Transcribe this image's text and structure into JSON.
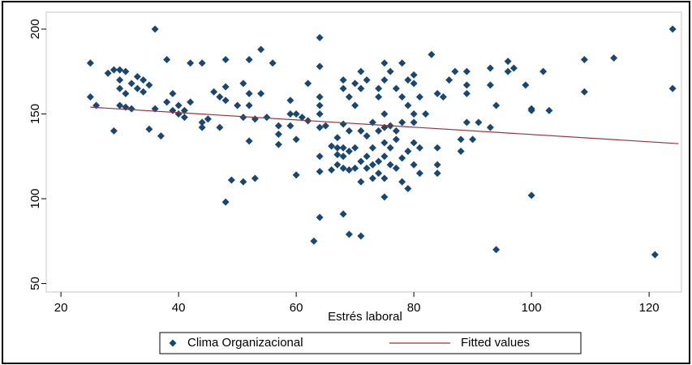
{
  "chart_data": {
    "type": "scatter",
    "x_label": "Estrés laboral",
    "xlim": [
      17.5,
      125.5
    ],
    "xticks": [
      20,
      40,
      60,
      80,
      100,
      120
    ],
    "ylim": [
      45,
      210
    ],
    "yticks": [
      50,
      100,
      150,
      200
    ],
    "legend": "bottom",
    "series": [
      {
        "name": "Clima Organizacional",
        "type": "scatter",
        "color": "#1a476f",
        "x": [
          25,
          25,
          26,
          28,
          29,
          29,
          30,
          30,
          30,
          30,
          31,
          31,
          31,
          32,
          32,
          33,
          33,
          34,
          34,
          35,
          35,
          36,
          36,
          37,
          38,
          38,
          39,
          39,
          40,
          40,
          41,
          41,
          42,
          42,
          44,
          44,
          44,
          45,
          46,
          47,
          47,
          48,
          48,
          48,
          48,
          49,
          50,
          51,
          51,
          51,
          52,
          52,
          52,
          52,
          53,
          53,
          54,
          54,
          55,
          56,
          57,
          57,
          57,
          59,
          59,
          59,
          60,
          60,
          60,
          61,
          62,
          62,
          63,
          64,
          64,
          64,
          64,
          64,
          64,
          64,
          64,
          64,
          65,
          66,
          66,
          67,
          67,
          67,
          67,
          68,
          68,
          68,
          68,
          68,
          68,
          68,
          69,
          69,
          69,
          69,
          69,
          70,
          70,
          70,
          70,
          71,
          71,
          71,
          71,
          71,
          71,
          72,
          72,
          72,
          72,
          73,
          73,
          73,
          73,
          74,
          74,
          74,
          74,
          74,
          75,
          75,
          75,
          75,
          75,
          75,
          75,
          75,
          76,
          76,
          76,
          76,
          77,
          77,
          77,
          77,
          78,
          78,
          78,
          78,
          78,
          79,
          79,
          79,
          79,
          80,
          80,
          80,
          80,
          80,
          80,
          81,
          81,
          81,
          82,
          83,
          84,
          84,
          84,
          84,
          85,
          86,
          87,
          88,
          88,
          89,
          89,
          89,
          89,
          90,
          91,
          93,
          93,
          93,
          94,
          94,
          96,
          96,
          97,
          99,
          100,
          100,
          100,
          102,
          103,
          109,
          109,
          114,
          121,
          124,
          124
        ],
        "values": [
          180,
          160,
          155,
          174,
          176,
          140,
          176,
          170,
          165,
          155,
          175,
          162,
          154,
          168,
          153,
          172,
          165,
          170,
          163,
          167,
          141,
          200,
          153,
          137,
          182,
          157,
          152,
          162,
          150,
          155,
          148,
          152,
          180,
          157,
          180,
          145,
          142,
          147,
          163,
          160,
          142,
          158,
          182,
          98,
          166,
          111,
          155,
          168,
          110,
          148,
          155,
          134,
          162,
          182,
          112,
          147,
          188,
          162,
          148,
          180,
          143,
          138,
          132,
          158,
          150,
          143,
          150,
          135,
          114,
          148,
          168,
          146,
          75,
          195,
          178,
          160,
          155,
          150,
          142,
          125,
          116,
          89,
          143,
          131,
          117,
          130,
          126,
          136,
          120,
          170,
          165,
          144,
          130,
          125,
          118,
          91,
          160,
          140,
          128,
          117,
          79,
          168,
          155,
          130,
          118,
          175,
          165,
          140,
          122,
          110,
          78,
          170,
          137,
          125,
          118,
          145,
          130,
          112,
          120,
          165,
          160,
          140,
          122,
          115,
          180,
          170,
          150,
          142,
          133,
          125,
          112,
          101,
          175,
          143,
          130,
          120,
          165,
          140,
          118,
          135,
          180,
          160,
          145,
          124,
          110,
          155,
          128,
          106,
          170,
          173,
          168,
          150,
          133,
          120,
          145,
          160,
          130,
          115,
          150,
          185,
          162,
          130,
          120,
          115,
          160,
          170,
          175,
          135,
          128,
          175,
          167,
          145,
          162,
          135,
          145,
          177,
          167,
          142,
          155,
          70,
          181,
          175,
          177,
          167,
          153,
          152,
          102,
          175,
          152,
          182,
          163,
          183,
          67,
          200,
          165
        ]
      },
      {
        "name": "Fitted values",
        "type": "line",
        "color": "#90353b",
        "x": [
          25,
          125
        ],
        "values": [
          154,
          132.5
        ]
      }
    ]
  }
}
